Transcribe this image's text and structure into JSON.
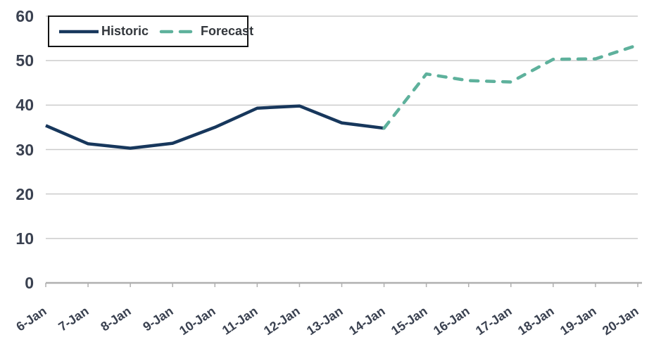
{
  "chart_data": {
    "type": "line",
    "title": "",
    "categories": [
      "6-Jan",
      "7-Jan",
      "8-Jan",
      "9-Jan",
      "10-Jan",
      "11-Jan",
      "12-Jan",
      "13-Jan",
      "14-Jan",
      "15-Jan",
      "16-Jan",
      "17-Jan",
      "18-Jan",
      "19-Jan",
      "20-Jan"
    ],
    "yticks": [
      0,
      10,
      20,
      30,
      40,
      50,
      60
    ],
    "ylim": [
      0,
      60
    ],
    "grid": "horizontal",
    "legend_position": "top-left-boxed",
    "series": [
      {
        "name": "Historic",
        "line_style": "solid",
        "color": "#17375c",
        "start_index": 0,
        "values": [
          35.4,
          31.3,
          30.3,
          31.4,
          35.0,
          39.3,
          39.8,
          36.0,
          34.8
        ]
      },
      {
        "name": "Forecast",
        "line_style": "dashed",
        "color": "#5eb19c",
        "start_index": 8,
        "values": [
          34.8,
          47.0,
          45.5,
          45.2,
          50.3,
          50.4,
          53.5
        ]
      }
    ]
  },
  "colors": {
    "background": "#ffffff",
    "gridline": "#cbcbcb",
    "axis_line": "#b0b0b0",
    "axis_label": "#3a4150",
    "legend_text": "#33373c",
    "legend_border": "#141414"
  }
}
